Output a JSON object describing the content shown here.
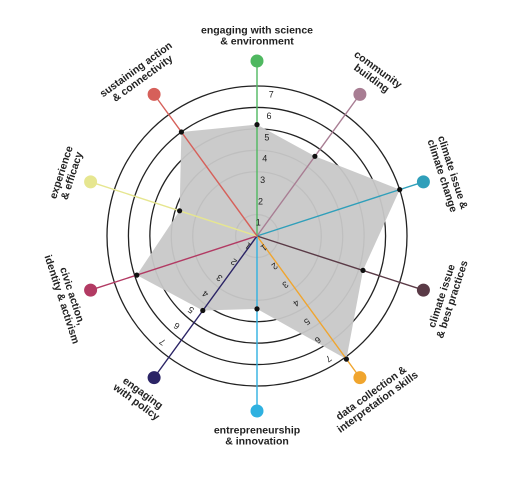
{
  "chart_data": {
    "type": "radar",
    "title": "",
    "rmax": 7,
    "rings": [
      1,
      3,
      4,
      5,
      6,
      7
    ],
    "tick_values": [
      1,
      2,
      3,
      4,
      5,
      6,
      7
    ],
    "axes": [
      {
        "label": [
          "engaging with science",
          "& environment"
        ],
        "color": "#4fb860",
        "value": 5.2
      },
      {
        "label": [
          "community",
          "building"
        ],
        "color": "#a87d93",
        "value": 4.6
      },
      {
        "label": [
          "climate issue &",
          "climate change"
        ],
        "color": "#2f9fba",
        "value": 7.0
      },
      {
        "label": [
          "climate issue",
          "& best practices"
        ],
        "color": "#5a3a46",
        "value": 5.2
      },
      {
        "label": [
          "data collection &",
          "interpretation skills"
        ],
        "color": "#f0a52e",
        "value": 7.1
      },
      {
        "label": [
          "entrepreneurship",
          "& innovation"
        ],
        "color": "#2fb1e0",
        "value": 3.4
      },
      {
        "label": [
          "engaging",
          "with policy"
        ],
        "color": "#2b2466",
        "value": 4.3
      },
      {
        "label": [
          "civic action,",
          "identity & activism"
        ],
        "color": "#b23a63",
        "value": 5.9
      },
      {
        "label": [
          "experience",
          "& efficacy"
        ],
        "color": "#e6e690",
        "value": 3.8
      },
      {
        "label": [
          "sustaining action",
          "& connectivity"
        ],
        "color": "#d6605a",
        "value": 6.0
      }
    ],
    "fill_color": "#c8c8c8",
    "ring_color": "#222222",
    "grid": true
  }
}
